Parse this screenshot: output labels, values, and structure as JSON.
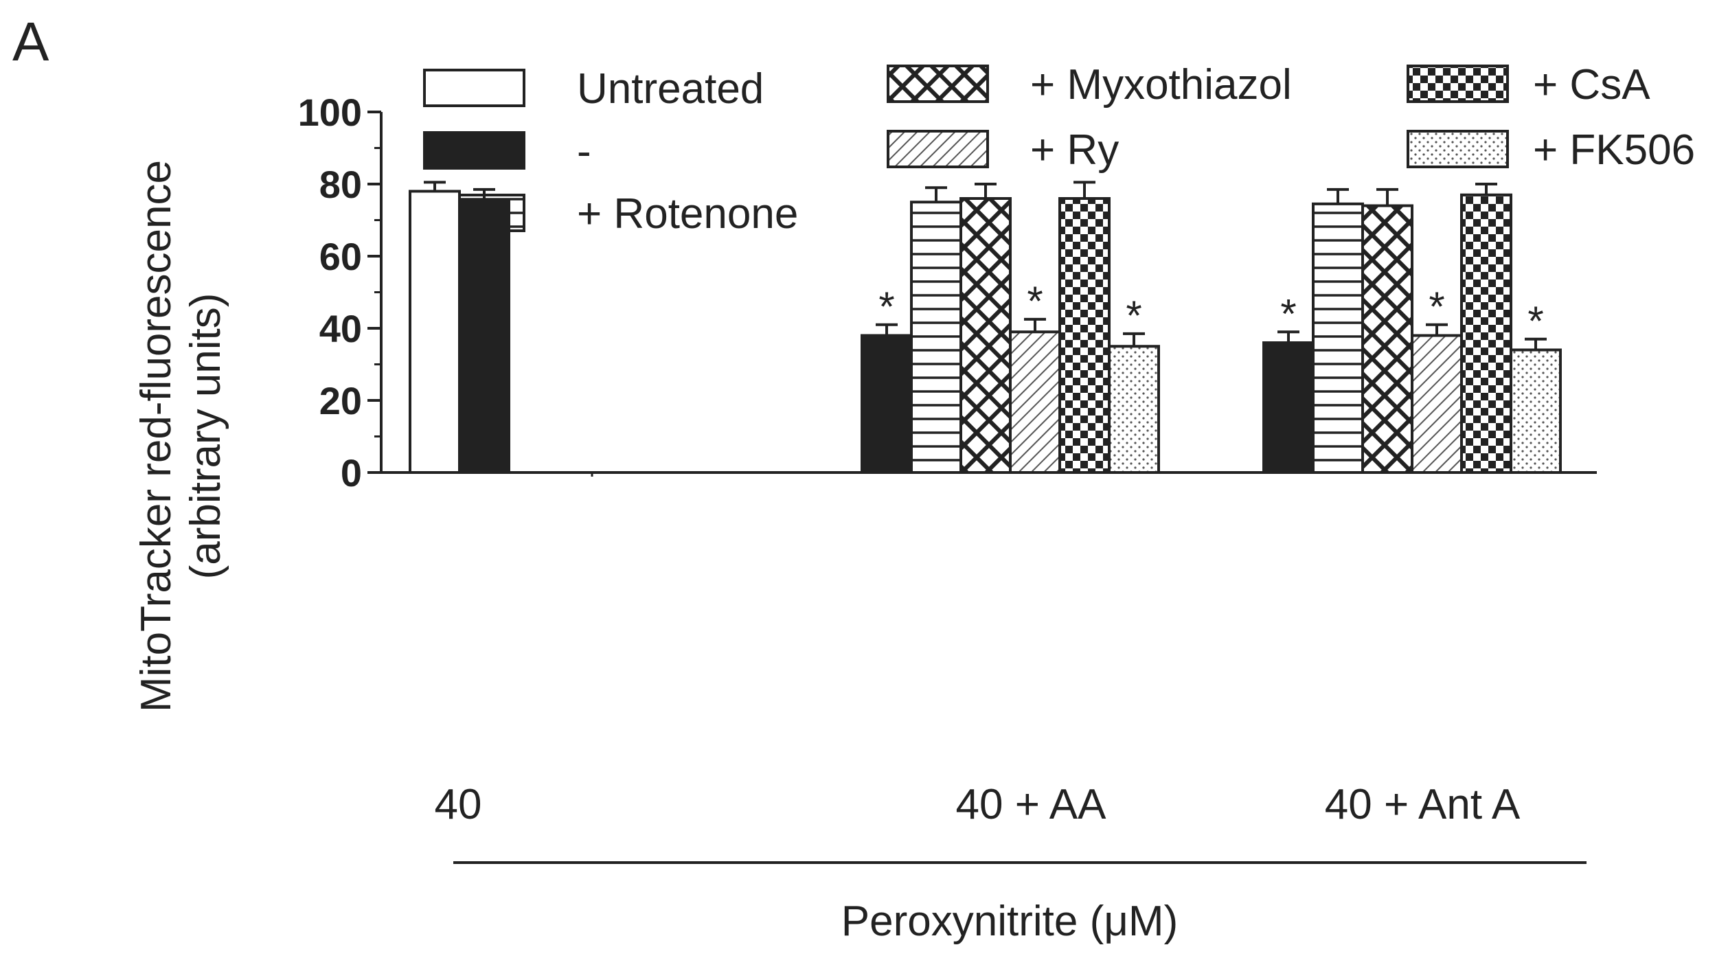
{
  "panel_label": "A",
  "chart_data": {
    "type": "bar",
    "panel": "A",
    "ylabel": [
      "MitoTracker red-fluorescence",
      "(arbitrary units)"
    ],
    "xlabel": "Peroxynitrite (μM)",
    "ylim": [
      0,
      100
    ],
    "yticks": [
      "0",
      "20",
      "40",
      "60",
      "80",
      "100"
    ],
    "grid": false,
    "legend_position": "top",
    "groups": [
      {
        "label": "40",
        "bars": [
          {
            "series": "Untreated",
            "value": 78,
            "error": 2.5,
            "star": ""
          },
          {
            "series": "-",
            "value": 75.5,
            "error": 3,
            "star": ""
          }
        ]
      },
      {
        "label": "40 + AA",
        "bars": [
          {
            "series": "-",
            "value": 38,
            "error": 3,
            "star": "*"
          },
          {
            "series": "+ Rotenone",
            "value": 75,
            "error": 4,
            "star": ""
          },
          {
            "series": "+ Myxothiazol",
            "value": 76,
            "error": 4,
            "star": ""
          },
          {
            "series": "+ Ry",
            "value": 39,
            "error": 3.5,
            "star": "*"
          },
          {
            "series": "+ CsA",
            "value": 76,
            "error": 4.5,
            "star": ""
          },
          {
            "series": "+ FK506",
            "value": 35,
            "error": 3.5,
            "star": "*"
          }
        ]
      },
      {
        "label": "40 + Ant A",
        "bars": [
          {
            "series": "-",
            "value": 36,
            "error": 3,
            "star": "*"
          },
          {
            "series": "+ Rotenone",
            "value": 74.5,
            "error": 4,
            "star": ""
          },
          {
            "series": "+ Myxothiazol",
            "value": 74,
            "error": 4.5,
            "star": ""
          },
          {
            "series": "+ Ry",
            "value": 38,
            "error": 3,
            "star": "*"
          },
          {
            "series": "+ CsA",
            "value": 77,
            "error": 3,
            "star": ""
          },
          {
            "series": "+ FK506",
            "value": 34,
            "error": 3,
            "star": "*"
          }
        ]
      }
    ],
    "legend": [
      {
        "series": "Untreated",
        "label": "Untreated",
        "pattern": "none"
      },
      {
        "series": "-",
        "label": "-",
        "pattern": "solid"
      },
      {
        "series": "+ Rotenone",
        "label": "+ Rotenone",
        "pattern": "hlines"
      },
      {
        "series": "+ Myxothiazol",
        "label": "+ Myxothiazol",
        "pattern": "crosshatch"
      },
      {
        "series": "+ Ry",
        "label": "+ Ry",
        "pattern": "diagonal"
      },
      {
        "series": "+ CsA",
        "label": "+ CsA",
        "pattern": "checker"
      },
      {
        "series": "+ FK506",
        "label": "+ FK506",
        "pattern": "dots"
      }
    ],
    "colors": {
      "ink": "#222222",
      "background": "#ffffff"
    }
  }
}
